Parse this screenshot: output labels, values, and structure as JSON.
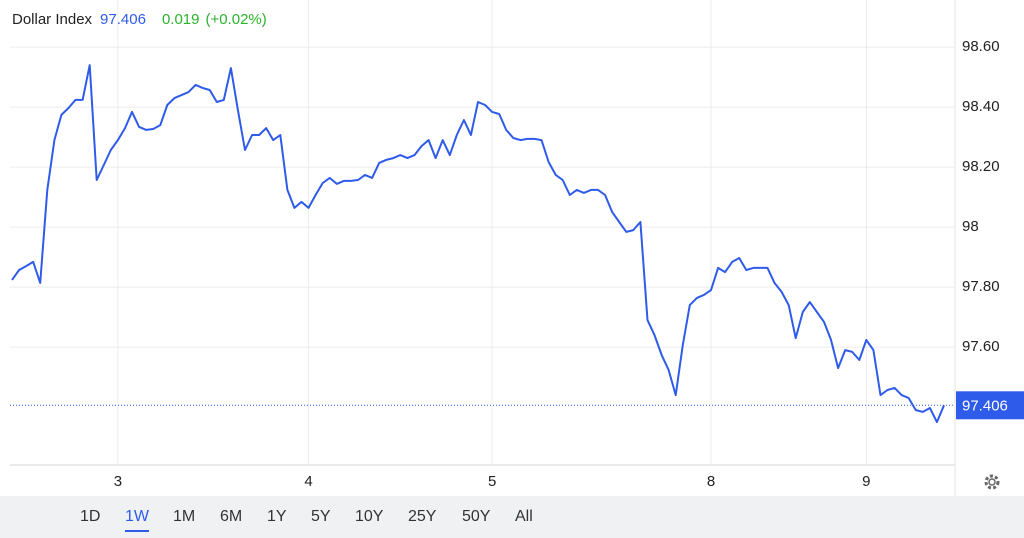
{
  "chart_data": {
    "type": "line",
    "title": "Dollar Index",
    "last_price": 97.406,
    "change": 0.019,
    "change_label": "(+0.02%)",
    "color": "#2f5bea",
    "grid": true,
    "categories": [
      null,
      null,
      null,
      null,
      null,
      null,
      null,
      null,
      null,
      null,
      null,
      null,
      null,
      null,
      null,
      "3",
      null,
      null,
      null,
      null,
      null,
      null,
      null,
      null,
      null,
      null,
      null,
      null,
      null,
      null,
      null,
      null,
      null,
      null,
      null,
      null,
      null,
      null,
      null,
      null,
      null,
      null,
      "4",
      null,
      null,
      null,
      null,
      null,
      null,
      null,
      null,
      null,
      null,
      null,
      null,
      null,
      null,
      null,
      null,
      null,
      null,
      null,
      null,
      null,
      null,
      null,
      null,
      null,
      "5",
      null,
      null,
      null,
      null,
      null,
      null,
      null,
      null,
      null,
      null,
      null,
      null,
      null,
      null,
      null,
      null,
      null,
      null,
      null,
      null,
      null,
      null,
      null,
      null,
      null,
      null,
      null,
      null,
      null,
      null,
      "8",
      null,
      null,
      null,
      null,
      null,
      null,
      null,
      null,
      null,
      null,
      null,
      null,
      null,
      null,
      null,
      null,
      null,
      null,
      null,
      null,
      null,
      "9",
      null,
      null,
      null,
      null,
      null,
      null,
      null,
      null,
      null,
      null,
      null
    ],
    "values": [
      97.824,
      97.857,
      97.87,
      97.884,
      97.814,
      98.124,
      98.29,
      98.374,
      98.397,
      98.424,
      98.424,
      98.54,
      98.157,
      98.207,
      98.257,
      98.29,
      98.33,
      98.384,
      98.334,
      98.324,
      98.327,
      98.34,
      98.407,
      98.43,
      98.44,
      98.45,
      98.474,
      98.464,
      98.457,
      98.417,
      98.424,
      98.53,
      98.39,
      98.257,
      98.307,
      98.307,
      98.33,
      98.29,
      98.307,
      98.124,
      98.064,
      98.084,
      98.064,
      98.107,
      98.147,
      98.164,
      98.144,
      98.154,
      98.154,
      98.157,
      98.174,
      98.164,
      98.214,
      98.224,
      98.23,
      98.24,
      98.23,
      98.24,
      98.27,
      98.29,
      98.23,
      98.29,
      98.24,
      98.307,
      98.357,
      98.307,
      98.417,
      98.407,
      98.384,
      98.377,
      98.324,
      98.297,
      98.29,
      98.294,
      98.294,
      98.29,
      98.217,
      98.174,
      98.157,
      98.107,
      98.124,
      98.114,
      98.124,
      98.124,
      98.107,
      98.05,
      98.017,
      97.984,
      97.99,
      98.017,
      97.69,
      97.64,
      97.574,
      97.524,
      97.44,
      97.607,
      97.74,
      97.764,
      97.774,
      97.79,
      97.864,
      97.85,
      97.884,
      97.897,
      97.857,
      97.864,
      97.864,
      97.864,
      97.814,
      97.784,
      97.74,
      97.63,
      97.717,
      97.75,
      97.717,
      97.684,
      97.624,
      97.53,
      97.59,
      97.584,
      97.557,
      97.624,
      97.59,
      97.44,
      97.457,
      97.464,
      97.44,
      97.43,
      97.39,
      97.384,
      97.397,
      97.35,
      97.406
    ],
    "ylim": [
      97.207,
      98.757
    ],
    "yticks": [
      {
        "value": 97.6,
        "label": "97.60"
      },
      {
        "value": 97.8,
        "label": "97.80"
      },
      98,
      {
        "value": 98.2,
        "label": "98.20"
      },
      {
        "value": 98.4,
        "label": "98.40"
      },
      {
        "value": 98.6,
        "label": "98.60"
      }
    ],
    "range_buttons": [
      "1D",
      "1W",
      "1M",
      "6M",
      "1Y",
      "5Y",
      "10Y",
      "25Y",
      "50Y",
      "All"
    ],
    "selected_range": 1
  }
}
